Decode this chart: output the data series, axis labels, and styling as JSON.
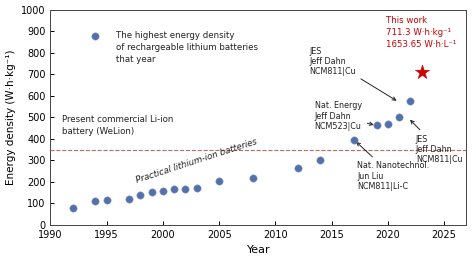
{
  "xlabel": "Year",
  "ylabel": "Energy density (W·h·kg⁻¹)",
  "xlim": [
    1990,
    2027
  ],
  "ylim": [
    0,
    1000
  ],
  "yticks": [
    0,
    100,
    200,
    300,
    400,
    500,
    600,
    700,
    800,
    900,
    1000
  ],
  "xticks": [
    1990,
    1995,
    2000,
    2005,
    2010,
    2015,
    2020,
    2025
  ],
  "dashed_line_y": 350,
  "bg_color": "#ffffff",
  "scatter_color": "#4060a0",
  "star_color": "#cc0000",
  "scatter_points": [
    [
      1992,
      80
    ],
    [
      1994,
      110
    ],
    [
      1995,
      115
    ],
    [
      1997,
      122
    ],
    [
      1998,
      140
    ],
    [
      1999,
      155
    ],
    [
      2000,
      160
    ],
    [
      2001,
      165
    ],
    [
      2002,
      168
    ],
    [
      2003,
      170
    ],
    [
      2005,
      205
    ],
    [
      2008,
      220
    ],
    [
      2012,
      265
    ],
    [
      2014,
      300
    ],
    [
      2017,
      395
    ],
    [
      2019,
      462
    ],
    [
      2020,
      468
    ],
    [
      2021,
      500
    ],
    [
      2022,
      575
    ]
  ],
  "star_point": [
    2023,
    711
  ],
  "legend_dot": [
    1994,
    875
  ]
}
